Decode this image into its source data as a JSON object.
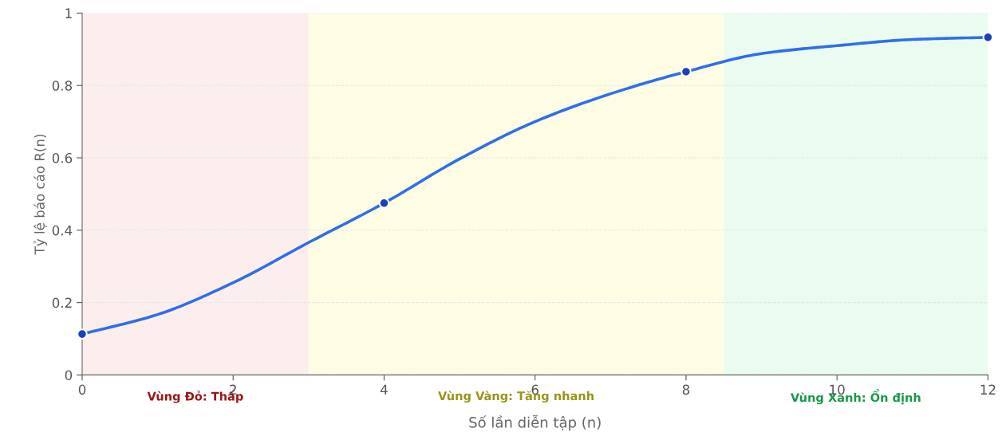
{
  "chart_data": {
    "type": "line",
    "xlabel": "Số lần diễn tập (n)",
    "ylabel": "Tỷ lệ báo cáo R(n)",
    "xlim": [
      0,
      12
    ],
    "xticks": [
      0,
      2,
      4,
      6,
      8,
      10,
      12
    ],
    "ylim": [
      0,
      1
    ],
    "yticks": [
      0,
      0.2,
      0.4,
      0.6,
      0.8,
      1
    ],
    "grid": "y",
    "line_style": "solid",
    "series": [
      {
        "color": "#2f6fe8",
        "marker": "none",
        "x": [
          0,
          1,
          2,
          3,
          4,
          5,
          6,
          7,
          8,
          9,
          10,
          11,
          12
        ],
        "values": [
          0.113,
          0.167,
          0.255,
          0.366,
          0.475,
          0.597,
          0.7,
          0.777,
          0.838,
          0.888,
          0.91,
          0.927,
          0.933
        ]
      },
      {
        "type": "scatter",
        "color": "#1a3fbf",
        "marker": "circle",
        "x": [
          0,
          4,
          8,
          12
        ],
        "values": [
          0.113,
          0.475,
          0.838,
          0.933
        ]
      }
    ],
    "bands": [
      {
        "axis": "x",
        "from": 0,
        "to": 3,
        "label": "Vùng Đỏ: Thấp",
        "color": "#fdeeee"
      },
      {
        "axis": "x",
        "from": 3,
        "to": 8.5,
        "label": "Vùng Vàng: Tăng nhanh",
        "color": "#fefde3"
      },
      {
        "axis": "x",
        "from": 8.5,
        "to": 12,
        "label": "Vùng Xanh: Ổn định",
        "color": "#eafbf0"
      }
    ]
  }
}
